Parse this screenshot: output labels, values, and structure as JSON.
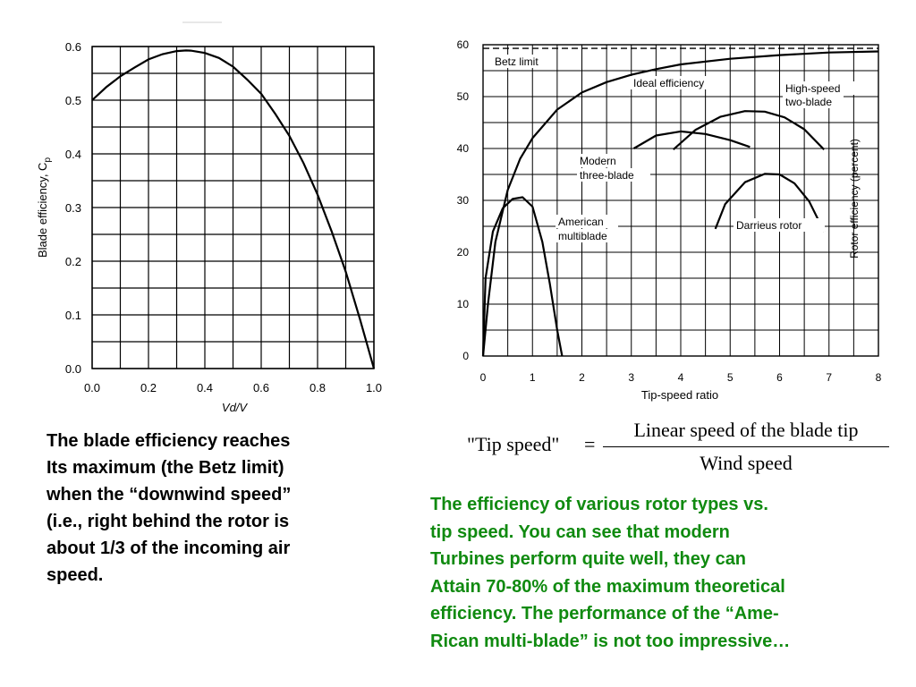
{
  "chart_data": [
    {
      "type": "line",
      "xlabel": "Vd/V",
      "ylabel": "Blade efficiency, C",
      "ylabel_sub": "p",
      "xlim": [
        0,
        1
      ],
      "ylim": [
        0,
        0.6
      ],
      "x_ticks": [
        "0.0",
        "0.2",
        "0.4",
        "0.6",
        "0.8",
        "1.0"
      ],
      "y_ticks": [
        "0.0",
        "0.1",
        "0.2",
        "0.3",
        "0.4",
        "0.5",
        "0.6"
      ],
      "grid": true,
      "series": [
        {
          "x": [
            0.0,
            0.05,
            0.1,
            0.15,
            0.2,
            0.25,
            0.3,
            0.3333,
            0.35,
            0.4,
            0.45,
            0.5,
            0.55,
            0.6,
            0.65,
            0.7,
            0.75,
            0.8,
            0.85,
            0.9,
            0.95,
            1.0
          ],
          "y": [
            0.5,
            0.5244,
            0.5445,
            0.5606,
            0.576,
            0.5859,
            0.5915,
            0.5926,
            0.5923,
            0.588,
            0.5786,
            0.5625,
            0.5385,
            0.512,
            0.4744,
            0.4335,
            0.3828,
            0.324,
            0.2554,
            0.1805,
            0.0926,
            0.0
          ]
        }
      ]
    },
    {
      "type": "line",
      "xlabel": "Tip-speed ratio",
      "ylabel": "Rotor efficiency (percent)",
      "xlim": [
        0,
        8
      ],
      "ylim": [
        0,
        60
      ],
      "x_ticks": [
        "0",
        "1",
        "2",
        "3",
        "4",
        "5",
        "6",
        "7",
        "8"
      ],
      "y_ticks": [
        "0",
        "10",
        "20",
        "30",
        "40",
        "50",
        "60"
      ],
      "grid": true,
      "betz_limit": 59.3,
      "annotations": [
        "Betz limit",
        "Ideal efficiency",
        "High-speed",
        "two-blade",
        "Modern",
        "three-blade",
        "American",
        "multiblade",
        "Darrieus rotor"
      ],
      "series": [
        {
          "x": [
            0,
            0.1,
            0.25,
            0.5,
            0.75,
            1.0,
            1.5,
            2.0,
            2.5,
            3.0,
            3.5,
            4.0,
            5.0,
            6.0,
            7.0,
            8.0
          ],
          "y": [
            0,
            10,
            22,
            32,
            38,
            42,
            47.5,
            50.8,
            52.8,
            54.2,
            55.3,
            56.2,
            57.3,
            58.0,
            58.5,
            58.7
          ]
        },
        {
          "x": [
            0,
            0.05,
            0.2,
            0.4,
            0.6,
            0.8,
            1.0,
            1.2,
            1.35,
            1.5,
            1.6
          ],
          "y": [
            0,
            15,
            24,
            28.5,
            30.3,
            30.6,
            28.8,
            22,
            14,
            5,
            0
          ]
        },
        {
          "x": [
            3.05,
            3.5,
            4.0,
            4.5,
            5.0,
            5.4
          ],
          "y": [
            40,
            42.5,
            43.3,
            42.8,
            41.6,
            40.3
          ]
        },
        {
          "x": [
            3.85,
            4.3,
            4.8,
            5.3,
            5.7,
            6.1,
            6.5,
            6.9
          ],
          "y": [
            39.8,
            43.6,
            46.1,
            47.2,
            47.1,
            46.0,
            43.7,
            39.8
          ]
        },
        {
          "x": [
            4.7,
            4.9,
            5.3,
            5.7,
            6.0,
            6.3,
            6.6,
            6.9
          ],
          "y": [
            24.5,
            29.3,
            33.5,
            35.1,
            35.0,
            33.3,
            29.8,
            24.0
          ]
        }
      ]
    }
  ],
  "formula": {
    "lhs": "\"Tip speed\"",
    "eq": "=",
    "numerator": "Linear speed of the blade tip",
    "denominator": "Wind speed"
  },
  "captions": {
    "left": "The blade efficiency reaches\nIts maximum (the Betz limit)\nwhen the “downwind speed”\n(i.e., right behind the rotor is\nabout 1/3 of the incoming air\n speed.",
    "right": "The efficiency of various rotor types vs.\ntip speed. You can see that modern\nTurbines perform quite well, they can\nAttain 70-80% of the maximum theoretical\nefficiency. The performance of the “Ame-\nRican multi-blade” is not too impressive…"
  }
}
